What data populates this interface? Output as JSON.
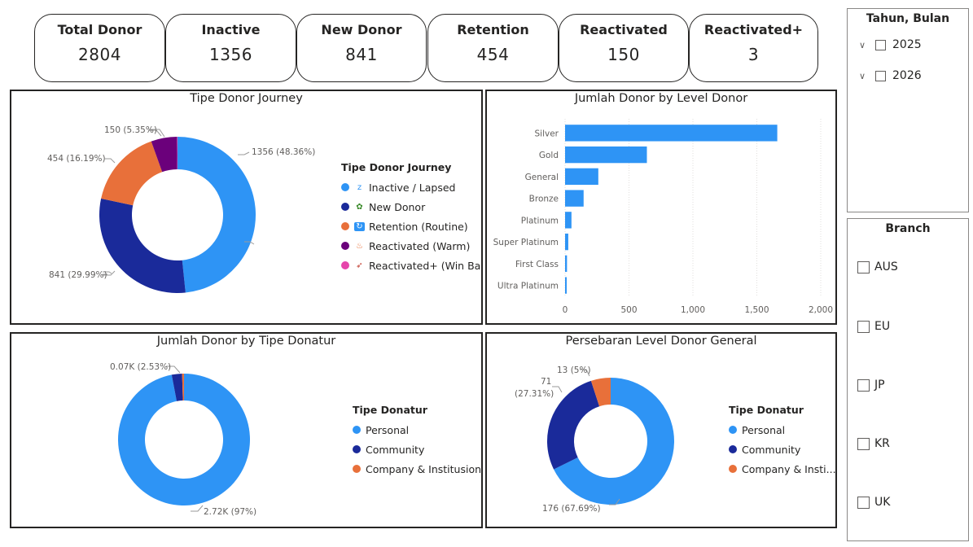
{
  "kpis": [
    {
      "label": "Total Donor",
      "value": "2804"
    },
    {
      "label": "Inactive",
      "value": "1356"
    },
    {
      "label": "New Donor",
      "value": "841"
    },
    {
      "label": "Retention",
      "value": "454"
    },
    {
      "label": "Reactivated",
      "value": "150"
    },
    {
      "label": "Reactivated+",
      "value": "3"
    }
  ],
  "colors": {
    "blue": "#2E94F5",
    "navy": "#1A2A9A",
    "orange": "#E8703A",
    "purple": "#6B007B",
    "pink": "#E645AB",
    "bar": "#2E94F5"
  },
  "journey": {
    "title": "Tipe Donor Journey",
    "legend_title": "Tipe Donor Journey",
    "items": [
      {
        "label": "Inactive / Lapsed",
        "icon": "zzz-icon",
        "color": "#2E94F5"
      },
      {
        "label": "New Donor",
        "icon": "seedling-icon",
        "color": "#1A2A9A"
      },
      {
        "label": "Retention (Routine)",
        "icon": "repeat-icon",
        "color": "#E8703A"
      },
      {
        "label": "Reactivated (Warm)",
        "icon": "fire-icon",
        "color": "#6B007B"
      },
      {
        "label": "Reactivated+ (Win Ba...",
        "icon": "rocket-icon",
        "color": "#E645AB"
      }
    ],
    "data_labels": [
      "1356 (48.36%)",
      "841 (29.99%)",
      "454 (16.19%)",
      "150 (5.35%)"
    ]
  },
  "level": {
    "title": "Jumlah Donor by Level Donor"
  },
  "tipe_donatur": {
    "title": "Jumlah Donor by Tipe Donatur",
    "legend_title": "Tipe Donatur",
    "items": [
      {
        "label": "Personal",
        "color": "#2E94F5"
      },
      {
        "label": "Community",
        "color": "#1A2A9A"
      },
      {
        "label": "Company & Institusional",
        "color": "#E8703A"
      }
    ],
    "data_labels": [
      "0.07K (2.53%)",
      "2.72K (97%)"
    ]
  },
  "general": {
    "title": "Persebaran Level Donor General",
    "legend_title": "Tipe Donatur",
    "items": [
      {
        "label": "Personal",
        "color": "#2E94F5"
      },
      {
        "label": "Community",
        "color": "#1A2A9A"
      },
      {
        "label": "Company & Insti...",
        "color": "#E8703A"
      }
    ],
    "data_labels": [
      "13 (5%)",
      "71",
      "(27.31%)",
      "176 (67.69%)"
    ]
  },
  "slicers": {
    "period": {
      "title": "Tahun, Bulan",
      "options": [
        "2025",
        "2026"
      ]
    },
    "branch": {
      "title": "Branch",
      "options": [
        "AUS",
        "EU",
        "JP",
        "KR",
        "UK"
      ]
    }
  },
  "chart_data": [
    {
      "type": "pie",
      "title": "Tipe Donor Journey",
      "categories": [
        "Inactive / Lapsed",
        "New Donor",
        "Retention (Routine)",
        "Reactivated (Warm)",
        "Reactivated+ (Win Ba..."
      ],
      "values": [
        1356,
        841,
        454,
        150,
        3
      ],
      "percents": [
        48.36,
        29.99,
        16.19,
        5.35,
        0.11
      ],
      "donut": true
    },
    {
      "type": "bar",
      "orientation": "horizontal",
      "title": "Jumlah Donor by Level Donor",
      "categories": [
        "Silver",
        "Gold",
        "General",
        "Bronze",
        "Platinum",
        "Super Platinum",
        "First Class",
        "Ultra Platinum"
      ],
      "values": [
        1660,
        640,
        260,
        145,
        50,
        25,
        15,
        10
      ],
      "xlim": [
        0,
        2000
      ],
      "xticks": [
        0,
        500,
        1000,
        1500,
        2000
      ],
      "xtick_labels": [
        "0",
        "500",
        "1,000",
        "1,500",
        "2,000"
      ],
      "grid": true
    },
    {
      "type": "pie",
      "title": "Jumlah Donor by Tipe Donatur",
      "categories": [
        "Personal",
        "Community",
        "Company & Institusional"
      ],
      "values": [
        2720,
        71,
        13
      ],
      "percents": [
        97.0,
        2.53,
        0.47
      ],
      "donut": true
    },
    {
      "type": "pie",
      "title": "Persebaran Level Donor General",
      "categories": [
        "Personal",
        "Community",
        "Company & Insti..."
      ],
      "values": [
        176,
        71,
        13
      ],
      "percents": [
        67.69,
        27.31,
        5.0
      ],
      "donut": true
    }
  ]
}
